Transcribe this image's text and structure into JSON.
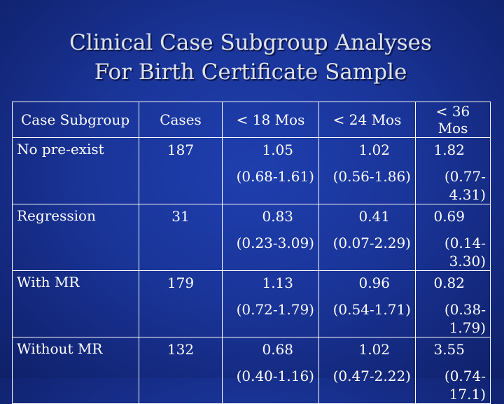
{
  "slide": {
    "title_line1": "Clinical Case Subgroup Analyses",
    "title_line2": "For Birth Certificate  Sample"
  },
  "table": {
    "headers": [
      "Case Subgroup",
      "Cases",
      "< 18 Mos",
      "< 24 Mos",
      "< 36 Mos"
    ],
    "rows": [
      {
        "subgroup": "No pre-exist",
        "cases": "187",
        "m18": {
          "value": "1.05",
          "ci": "(0.68-1.61)"
        },
        "m24": {
          "value": "1.02",
          "ci": "(0.56-1.86)"
        },
        "m36": {
          "value": "1.82",
          "ci": "(0.77-4.31)"
        }
      },
      {
        "subgroup": "Regression",
        "cases": "31",
        "m18": {
          "value": "0.83",
          "ci": "(0.23-3.09)"
        },
        "m24": {
          "value": "0.41",
          "ci": "(0.07-2.29)"
        },
        "m36": {
          "value": "0.69",
          "ci": "(0.14-3.30)"
        }
      },
      {
        "subgroup": "With MR",
        "cases": "179",
        "m18": {
          "value": "1.13",
          "ci": "(0.72-1.79)"
        },
        "m24": {
          "value": "0.96",
          "ci": "(0.54-1.71)"
        },
        "m36": {
          "value": "0.82",
          "ci": "(0.38-1.79)"
        }
      },
      {
        "subgroup": "Without MR",
        "cases": "132",
        "m18": {
          "value": "0.68",
          "ci": "(0.40-1.16)"
        },
        "m24": {
          "value": "1.02",
          "ci": "(0.47-2.22)"
        },
        "m36": {
          "value": "3.55",
          "ci": "(0.74-17.1)"
        }
      }
    ]
  },
  "colors": {
    "background": "#1a3599",
    "title_text": "#dde2ec",
    "table_text": "#ffffff",
    "grid_lines": "#ffffff"
  }
}
